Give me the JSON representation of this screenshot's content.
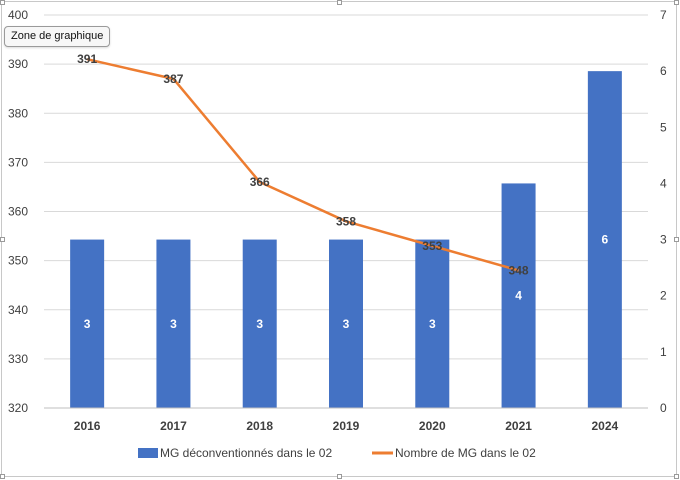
{
  "tooltip": "Zone de graphique",
  "colors": {
    "bar": "#4472C4",
    "line": "#ED7D31",
    "grid": "#d9d9d9",
    "text": "#595959",
    "label": "#404040"
  },
  "chart_data": {
    "type": "bar",
    "categories": [
      "2016",
      "2017",
      "2018",
      "2019",
      "2020",
      "2021",
      "2024"
    ],
    "series": [
      {
        "name": "MG déconventionnés dans le 02",
        "type": "bar",
        "axis": "secondary",
        "values": [
          3,
          3,
          3,
          3,
          3,
          4,
          6
        ],
        "labels": [
          "3",
          "3",
          "3",
          "3",
          "3",
          "4",
          "6"
        ]
      },
      {
        "name": "Nombre de MG dans le 02",
        "type": "line",
        "axis": "primary",
        "values": [
          391,
          387,
          366,
          358,
          353,
          348,
          null
        ],
        "labels": [
          "391",
          "387",
          "366",
          "358",
          "353",
          "348",
          ""
        ]
      }
    ],
    "y_primary": {
      "min": 320,
      "max": 400,
      "ticks": [
        "320",
        "330",
        "340",
        "350",
        "360",
        "370",
        "380",
        "390",
        "400"
      ]
    },
    "y_secondary": {
      "min": 0,
      "max": 7,
      "ticks": [
        "0",
        "1",
        "2",
        "3",
        "4",
        "5",
        "6",
        "7"
      ]
    },
    "title": "",
    "grid": true,
    "legend": "bottom"
  }
}
